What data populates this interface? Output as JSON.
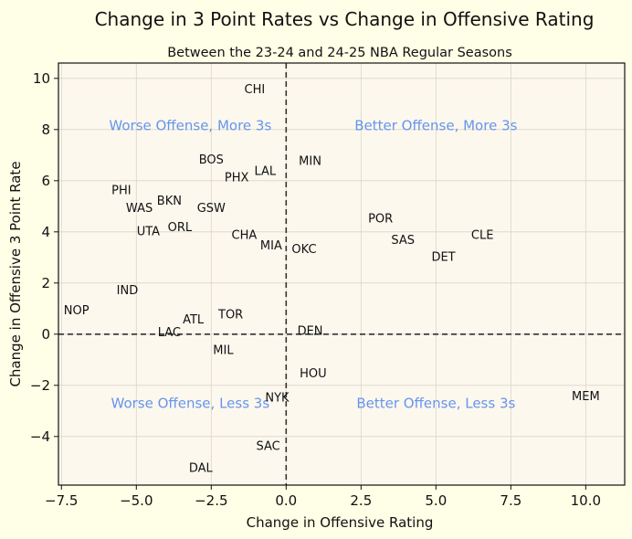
{
  "chart_data": {
    "type": "scatter",
    "title": "Change in 3 Point Rates vs Change in Offensive Rating",
    "subtitle": "Between the 23-24 and 24-25 NBA Regular Seasons",
    "xlabel": "Change in Offensive Rating",
    "ylabel": "Change in Offensive 3 Point Rate",
    "xlim": [
      -7.6,
      11.3
    ],
    "ylim": [
      -5.9,
      10.6
    ],
    "xticks": [
      -7.5,
      -5.0,
      -2.5,
      0.0,
      2.5,
      5.0,
      7.5,
      10.0
    ],
    "yticks": [
      -4,
      -2,
      0,
      2,
      4,
      6,
      8,
      10
    ],
    "xtick_labels": [
      "−7.5",
      "−5.0",
      "−2.5",
      "0.0",
      "2.5",
      "5.0",
      "7.5",
      "10.0"
    ],
    "ytick_labels": [
      "−4",
      "−2",
      "0",
      "2",
      "4",
      "6",
      "8",
      "10"
    ],
    "grid": true,
    "reference_lines": {
      "x": 0,
      "y": 0,
      "style": "dashed"
    },
    "colors": {
      "figure_background": "#fffee6",
      "plot_background": "#fdf8ee",
      "quadrant_text": "#6495ed",
      "grid": "#d9d5c8",
      "reference_line": "#333333"
    },
    "points": [
      {
        "label": "CHI",
        "x": -1.05,
        "y": 9.6
      },
      {
        "label": "MIN",
        "x": 0.8,
        "y": 6.8
      },
      {
        "label": "BOS",
        "x": -2.5,
        "y": 6.85
      },
      {
        "label": "LAL",
        "x": -0.7,
        "y": 6.4
      },
      {
        "label": "PHX",
        "x": -1.65,
        "y": 6.15
      },
      {
        "label": "PHI",
        "x": -5.5,
        "y": 5.65
      },
      {
        "label": "BKN",
        "x": -3.9,
        "y": 5.25
      },
      {
        "label": "WAS",
        "x": -4.9,
        "y": 4.95
      },
      {
        "label": "GSW",
        "x": -2.5,
        "y": 4.95
      },
      {
        "label": "POR",
        "x": 3.15,
        "y": 4.55
      },
      {
        "label": "ORL",
        "x": -3.55,
        "y": 4.2
      },
      {
        "label": "UTA",
        "x": -4.6,
        "y": 4.05
      },
      {
        "label": "CHA",
        "x": -1.4,
        "y": 3.9
      },
      {
        "label": "CLE",
        "x": 6.55,
        "y": 3.9
      },
      {
        "label": "SAS",
        "x": 3.9,
        "y": 3.7
      },
      {
        "label": "MIA",
        "x": -0.5,
        "y": 3.5
      },
      {
        "label": "OKC",
        "x": 0.6,
        "y": 3.35
      },
      {
        "label": "DET",
        "x": 5.25,
        "y": 3.05
      },
      {
        "label": "IND",
        "x": -5.3,
        "y": 1.75
      },
      {
        "label": "NOP",
        "x": -7.0,
        "y": 0.95
      },
      {
        "label": "TOR",
        "x": -1.85,
        "y": 0.8
      },
      {
        "label": "ATL",
        "x": -3.1,
        "y": 0.6
      },
      {
        "label": "LAC",
        "x": -3.9,
        "y": 0.1
      },
      {
        "label": "DEN",
        "x": 0.8,
        "y": 0.15
      },
      {
        "label": "MIL",
        "x": -2.1,
        "y": -0.6
      },
      {
        "label": "HOU",
        "x": 0.9,
        "y": -1.5
      },
      {
        "label": "MEM",
        "x": 10.0,
        "y": -2.4
      },
      {
        "label": "NYK",
        "x": -0.3,
        "y": -2.45
      },
      {
        "label": "SAC",
        "x": -0.6,
        "y": -4.35
      },
      {
        "label": "DAL",
        "x": -2.85,
        "y": -5.2
      }
    ],
    "quadrant_labels": [
      {
        "text": "Worse Offense, More 3s",
        "position": "top-left"
      },
      {
        "text": "Better Offense, More 3s",
        "position": "top-right"
      },
      {
        "text": "Worse Offense, Less 3s",
        "position": "bottom-left"
      },
      {
        "text": "Better Offense, Less 3s",
        "position": "bottom-right"
      }
    ]
  }
}
